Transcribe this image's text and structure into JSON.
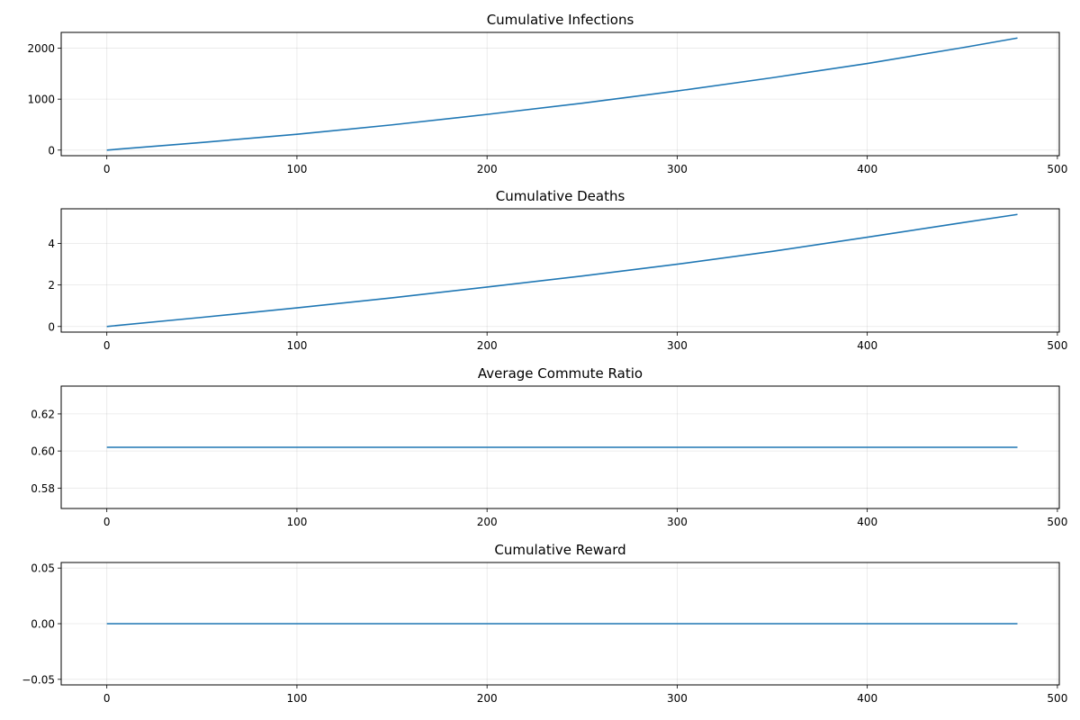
{
  "chart_data": [
    {
      "type": "line",
      "title": "Cumulative Infections",
      "xlabel": "",
      "ylabel": "",
      "xlim": [
        -24,
        501
      ],
      "ylim": [
        -110,
        2310
      ],
      "xticks": [
        0,
        100,
        200,
        300,
        400,
        500
      ],
      "yticks": [
        0,
        1000,
        2000
      ],
      "ytick_labels": [
        "0",
        "1000",
        "2000"
      ],
      "grid": true,
      "series": [
        {
          "color": "#1f77b4",
          "x": [
            0,
            50,
            100,
            150,
            200,
            250,
            300,
            350,
            400,
            450,
            479
          ],
          "y": [
            0,
            150,
            310,
            495,
            700,
            920,
            1160,
            1420,
            1700,
            2010,
            2200
          ]
        }
      ]
    },
    {
      "type": "line",
      "title": "Cumulative Deaths",
      "xlabel": "",
      "ylabel": "",
      "xlim": [
        -24,
        501
      ],
      "ylim": [
        -0.27,
        5.67
      ],
      "xticks": [
        0,
        100,
        200,
        300,
        400,
        500
      ],
      "yticks": [
        0,
        2,
        4
      ],
      "ytick_labels": [
        "0",
        "2",
        "4"
      ],
      "grid": true,
      "series": [
        {
          "color": "#1f77b4",
          "x": [
            0,
            50,
            100,
            150,
            200,
            250,
            300,
            350,
            400,
            450,
            479
          ],
          "y": [
            0,
            0.44,
            0.9,
            1.38,
            1.9,
            2.43,
            3.0,
            3.62,
            4.3,
            5.0,
            5.4
          ]
        }
      ]
    },
    {
      "type": "line",
      "title": "Average Commute Ratio",
      "xlabel": "",
      "ylabel": "",
      "xlim": [
        -24,
        501
      ],
      "ylim": [
        0.569,
        0.635
      ],
      "xticks": [
        0,
        100,
        200,
        300,
        400,
        500
      ],
      "yticks": [
        0.58,
        0.6,
        0.62
      ],
      "ytick_labels": [
        "0.58",
        "0.60",
        "0.62"
      ],
      "grid": true,
      "series": [
        {
          "color": "#1f77b4",
          "x": [
            0,
            479
          ],
          "y": [
            0.602,
            0.602
          ]
        }
      ]
    },
    {
      "type": "line",
      "title": "Cumulative Reward",
      "xlabel": "",
      "ylabel": "",
      "xlim": [
        -24,
        501
      ],
      "ylim": [
        -0.055,
        0.055
      ],
      "xticks": [
        0,
        100,
        200,
        300,
        400,
        500
      ],
      "yticks": [
        -0.05,
        0.0,
        0.05
      ],
      "ytick_labels": [
        "−0.05",
        "0.00",
        "0.05"
      ],
      "grid": true,
      "series": [
        {
          "color": "#1f77b4",
          "x": [
            0,
            479
          ],
          "y": [
            0,
            0
          ]
        }
      ]
    }
  ]
}
